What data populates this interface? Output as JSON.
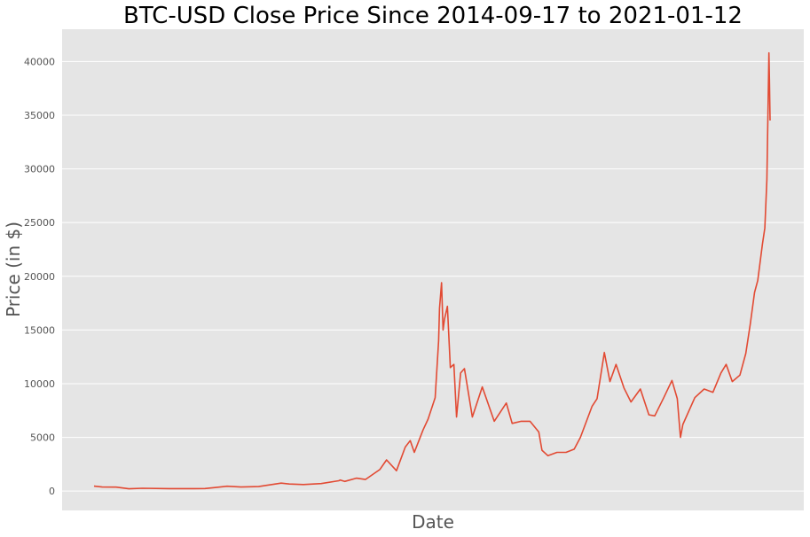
{
  "chart_data": {
    "type": "line",
    "title": "BTC-USD Close Price Since 2014-09-17 to 2021-01-12",
    "xlabel": "Date",
    "ylabel": "Price (in $)",
    "x_range": [
      "2014-09-17",
      "2021-01-12"
    ],
    "ylim": [
      -1800,
      43000
    ],
    "yticks": [
      0,
      5000,
      10000,
      15000,
      20000,
      25000,
      30000,
      35000,
      40000
    ],
    "xticks_visible": false,
    "grid": true,
    "legend": "none",
    "colors": {
      "series": "#E24A33",
      "plot_background": "#E5E5E5",
      "grid": "#FFFFFF"
    },
    "series": [
      {
        "x": [
          "2014-09-17",
          "2014-10-15",
          "2014-12-01",
          "2015-01-14",
          "2015-03-01",
          "2015-06-01",
          "2015-08-25",
          "2015-10-01",
          "2015-11-04",
          "2015-12-15",
          "2016-02-01",
          "2016-04-01",
          "2016-06-17",
          "2016-07-15",
          "2016-09-01",
          "2016-11-01",
          "2016-12-31",
          "2017-01-05",
          "2017-01-20",
          "2017-03-01",
          "2017-04-01",
          "2017-05-20",
          "2017-06-12",
          "2017-07-16",
          "2017-08-15",
          "2017-09-01",
          "2017-09-15",
          "2017-10-15",
          "2017-11-01",
          "2017-11-25",
          "2017-12-07",
          "2017-12-10",
          "2017-12-17",
          "2017-12-22",
          "2017-12-27",
          "2018-01-06",
          "2018-01-16",
          "2018-01-28",
          "2018-02-06",
          "2018-02-20",
          "2018-03-05",
          "2018-04-01",
          "2018-05-05",
          "2018-06-15",
          "2018-07-26",
          "2018-08-15",
          "2018-09-15",
          "2018-10-15",
          "2018-11-14",
          "2018-11-25",
          "2018-12-15",
          "2019-01-15",
          "2019-02-15",
          "2019-03-15",
          "2019-04-05",
          "2019-05-15",
          "2019-06-01",
          "2019-06-26",
          "2019-07-15",
          "2019-08-05",
          "2019-09-01",
          "2019-09-25",
          "2019-10-27",
          "2019-11-25",
          "2019-12-15",
          "2020-01-15",
          "2020-02-12",
          "2020-03-01",
          "2020-03-12",
          "2020-03-20",
          "2020-04-30",
          "2020-06-01",
          "2020-07-01",
          "2020-07-28",
          "2020-08-15",
          "2020-09-05",
          "2020-10-01",
          "2020-10-21",
          "2020-11-05",
          "2020-11-20",
          "2020-12-01",
          "2020-12-17",
          "2020-12-25",
          "2021-01-01",
          "2021-01-08",
          "2021-01-10",
          "2021-01-12"
        ],
        "y": [
          460,
          380,
          370,
          210,
          260,
          230,
          230,
          240,
          330,
          450,
          380,
          420,
          740,
          660,
          610,
          700,
          960,
          1030,
          900,
          1200,
          1080,
          2000,
          2900,
          1900,
          4100,
          4700,
          3600,
          5700,
          6700,
          8700,
          14000,
          17000,
          19400,
          15000,
          16000,
          17200,
          11500,
          11800,
          6900,
          11000,
          11400,
          6900,
          9700,
          6500,
          8200,
          6300,
          6500,
          6500,
          5500,
          3800,
          3300,
          3600,
          3600,
          3900,
          5000,
          7900,
          8600,
          12900,
          10200,
          11800,
          9600,
          8300,
          9500,
          7100,
          7000,
          8700,
          10300,
          8600,
          5000,
          6200,
          8700,
          9500,
          9200,
          11000,
          11800,
          10200,
          10800,
          12800,
          15500,
          18500,
          19600,
          23000,
          24500,
          29000,
          40800,
          38200,
          34500
        ]
      }
    ]
  }
}
